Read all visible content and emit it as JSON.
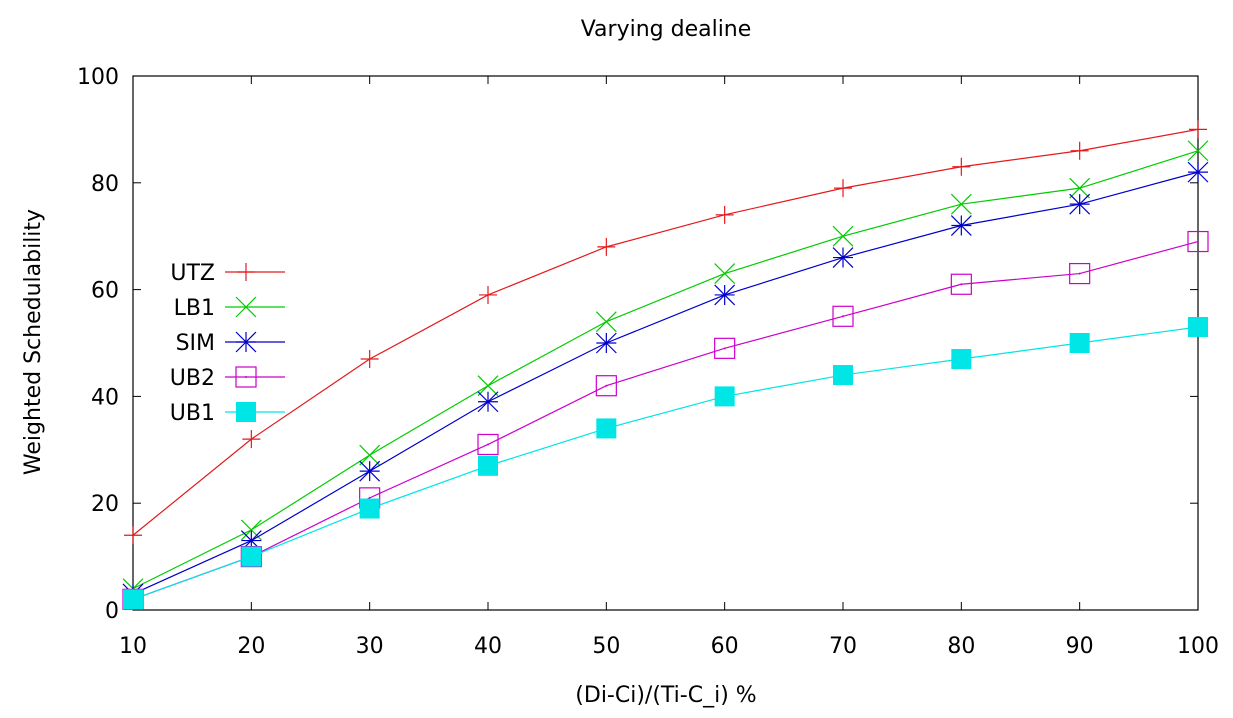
{
  "chart_data": {
    "type": "line",
    "title": "Varying dealine",
    "xlabel": "(Di-Ci)/(Ti-C_i) %",
    "ylabel": "Weighted Schedulability",
    "x": [
      10,
      20,
      30,
      40,
      50,
      60,
      70,
      80,
      90,
      100
    ],
    "xlim": [
      10,
      100
    ],
    "ylim": [
      0,
      100
    ],
    "xticks": [
      "10",
      "20",
      "30",
      "40",
      "50",
      "60",
      "70",
      "80",
      "90",
      "100"
    ],
    "yticks": [
      "0",
      "20",
      "40",
      "60",
      "80",
      "100"
    ],
    "grid": false,
    "legend_position": "left",
    "series": [
      {
        "name": "UTZ",
        "color": "#e41a1c",
        "marker": "plus",
        "values": [
          14,
          32,
          47,
          59,
          68,
          74,
          79,
          83,
          86,
          90
        ]
      },
      {
        "name": "LB1",
        "color": "#00cc00",
        "marker": "cross",
        "values": [
          4,
          15,
          29,
          42,
          54,
          63,
          70,
          76,
          79,
          86
        ]
      },
      {
        "name": "SIM",
        "color": "#0000cc",
        "marker": "star",
        "values": [
          3,
          13,
          26,
          39,
          50,
          59,
          66,
          72,
          76,
          82
        ]
      },
      {
        "name": "UB2",
        "color": "#cc00cc",
        "marker": "open-square",
        "values": [
          2,
          10,
          21,
          31,
          42,
          49,
          55,
          61,
          63,
          69
        ]
      },
      {
        "name": "UB1",
        "color": "#00e5e5",
        "marker": "filled-square",
        "values": [
          2,
          10,
          19,
          27,
          34,
          40,
          44,
          47,
          50,
          53
        ]
      }
    ]
  }
}
